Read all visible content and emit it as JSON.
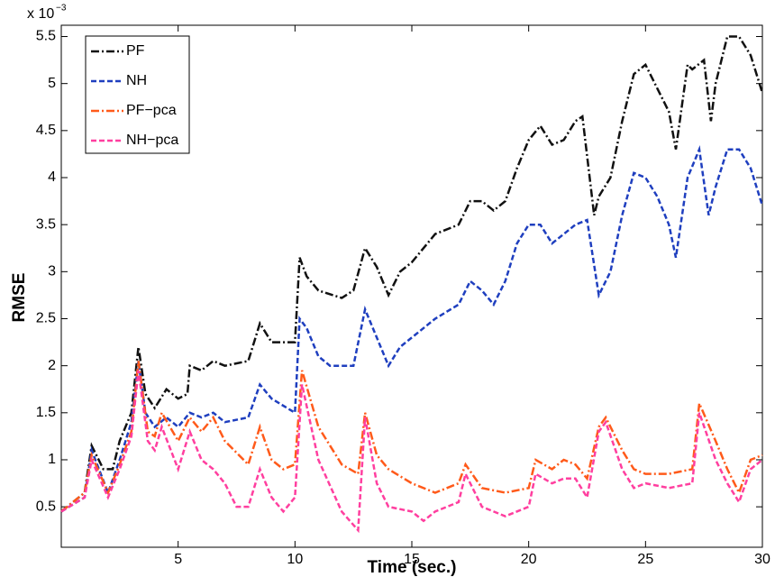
{
  "chart_data": {
    "type": "line",
    "xlabel": "Time (sec.)",
    "ylabel": "RMSE",
    "y_multiplier": {
      "base": "x 10",
      "power": "−3"
    },
    "xlim": [
      0,
      30
    ],
    "xticks": [
      5,
      10,
      15,
      20,
      25,
      30
    ],
    "ylim": [
      0.07,
      5.62
    ],
    "yticks": [
      0.5,
      1,
      1.5,
      2,
      2.5,
      3,
      3.5,
      4,
      4.5,
      5,
      5.5
    ],
    "legend": "upper left",
    "grid": false,
    "series": [
      {
        "name": "PF",
        "color": "#111111",
        "linestyle": "dashdot",
        "x": [
          0,
          0.5,
          1,
          1.3,
          1.8,
          2.2,
          2.5,
          3,
          3.3,
          3.6,
          4,
          4.5,
          5,
          5.4,
          5.5,
          6,
          6.5,
          7,
          8,
          8.5,
          9,
          10,
          10.2,
          10.5,
          11,
          12,
          12.5,
          13,
          13.5,
          14,
          14.5,
          15,
          16,
          17,
          17.5,
          18,
          18.5,
          19,
          19.5,
          20,
          20.5,
          21,
          21.5,
          22,
          22.3,
          22.8,
          23,
          23.5,
          24,
          24.5,
          25,
          25.5,
          26,
          26.3,
          26.8,
          27,
          27.5,
          27.8,
          28,
          28.5,
          29,
          29.5,
          30
        ],
        "values": [
          0.45,
          0.55,
          0.65,
          1.15,
          0.9,
          0.9,
          1.2,
          1.5,
          2.2,
          1.7,
          1.55,
          1.75,
          1.65,
          1.7,
          2.0,
          1.95,
          2.05,
          2.0,
          2.05,
          2.45,
          2.25,
          2.25,
          3.15,
          2.95,
          2.8,
          2.72,
          2.8,
          3.25,
          3.05,
          2.75,
          3.0,
          3.1,
          3.4,
          3.5,
          3.75,
          3.75,
          3.65,
          3.75,
          4.1,
          4.4,
          4.55,
          4.35,
          4.4,
          4.6,
          4.65,
          3.6,
          3.8,
          4.0,
          4.6,
          5.1,
          5.2,
          4.95,
          4.7,
          4.3,
          5.2,
          5.15,
          5.25,
          4.6,
          5.0,
          5.5,
          5.5,
          5.3,
          4.9
        ]
      },
      {
        "name": "NH",
        "color": "#1f3fbf",
        "linestyle": "dashed",
        "x": [
          0,
          1,
          1.3,
          2,
          2.5,
          3,
          3.3,
          3.6,
          4,
          4.5,
          5,
          5.5,
          6,
          6.5,
          7,
          8,
          8.5,
          9,
          10,
          10.2,
          10.5,
          11,
          11.5,
          12.5,
          13,
          13.5,
          14,
          14.5,
          15,
          16,
          17,
          17.5,
          18,
          18.5,
          19,
          19.5,
          20,
          20.5,
          21,
          21.5,
          22,
          22.5,
          23,
          23.5,
          24,
          24.5,
          25,
          25.5,
          26,
          26.3,
          26.8,
          27.3,
          27.7,
          28,
          28.5,
          29,
          29.5,
          30
        ],
        "values": [
          0.45,
          0.6,
          1.1,
          0.65,
          1.0,
          1.4,
          2.05,
          1.5,
          1.35,
          1.45,
          1.35,
          1.5,
          1.45,
          1.5,
          1.4,
          1.45,
          1.8,
          1.65,
          1.5,
          2.5,
          2.4,
          2.1,
          2.0,
          2.0,
          2.6,
          2.3,
          2.0,
          2.2,
          2.3,
          2.5,
          2.65,
          2.9,
          2.8,
          2.65,
          2.9,
          3.3,
          3.5,
          3.5,
          3.3,
          3.4,
          3.5,
          3.55,
          2.75,
          3.0,
          3.6,
          4.05,
          4.0,
          3.8,
          3.5,
          3.15,
          4.0,
          4.3,
          3.6,
          3.9,
          4.3,
          4.3,
          4.1,
          3.7
        ]
      },
      {
        "name": "PF−pca",
        "color": "#ff5a1a",
        "linestyle": "dashdot",
        "x": [
          0,
          1,
          1.3,
          2,
          2.5,
          3,
          3.3,
          3.7,
          4,
          4.3,
          5,
          5.5,
          6,
          6.5,
          7,
          8,
          8.5,
          9,
          9.5,
          10,
          10.3,
          11,
          12,
          12.7,
          13,
          13.5,
          14,
          15,
          16,
          17,
          17.3,
          18,
          19,
          20,
          20.3,
          21,
          21.5,
          22,
          22.5,
          23,
          23.3,
          24,
          24.5,
          25,
          26,
          27,
          27.3,
          28,
          28.5,
          29,
          29.5,
          30
        ],
        "values": [
          0.45,
          0.65,
          1.05,
          0.65,
          0.95,
          1.3,
          2.05,
          1.3,
          1.25,
          1.5,
          1.2,
          1.45,
          1.3,
          1.45,
          1.2,
          0.95,
          1.35,
          1.0,
          0.9,
          0.95,
          1.95,
          1.35,
          0.95,
          0.85,
          1.5,
          1.05,
          0.9,
          0.75,
          0.65,
          0.75,
          0.95,
          0.7,
          0.65,
          0.7,
          1.0,
          0.9,
          1.0,
          0.95,
          0.8,
          1.35,
          1.45,
          1.1,
          0.9,
          0.85,
          0.85,
          0.9,
          1.6,
          1.2,
          0.9,
          0.65,
          1.0,
          1.05
        ]
      },
      {
        "name": "NH−pca",
        "color": "#ff3f9f",
        "linestyle": "dashed",
        "x": [
          0,
          1,
          1.3,
          2,
          2.5,
          3,
          3.3,
          3.7,
          4,
          4.3,
          5,
          5.5,
          6,
          6.5,
          7,
          7.5,
          8,
          8.5,
          9,
          9.5,
          10,
          10.3,
          11,
          12,
          12.7,
          13,
          13.5,
          14,
          15,
          15.5,
          16,
          17,
          17.3,
          18,
          19,
          20,
          20.3,
          21,
          21.5,
          22,
          22.5,
          23,
          23.3,
          24,
          24.5,
          25,
          26,
          27,
          27.3,
          28,
          28.5,
          29,
          29.5,
          30
        ],
        "values": [
          0.45,
          0.6,
          1.0,
          0.6,
          0.9,
          1.25,
          1.95,
          1.2,
          1.1,
          1.35,
          0.9,
          1.3,
          1.0,
          0.9,
          0.75,
          0.5,
          0.5,
          0.9,
          0.6,
          0.45,
          0.6,
          1.8,
          1.0,
          0.45,
          0.25,
          1.45,
          0.75,
          0.5,
          0.45,
          0.35,
          0.45,
          0.55,
          0.85,
          0.5,
          0.4,
          0.5,
          0.85,
          0.75,
          0.8,
          0.8,
          0.6,
          1.3,
          1.4,
          0.9,
          0.7,
          0.75,
          0.7,
          0.75,
          1.5,
          1.0,
          0.75,
          0.55,
          0.9,
          1.0
        ]
      }
    ]
  }
}
